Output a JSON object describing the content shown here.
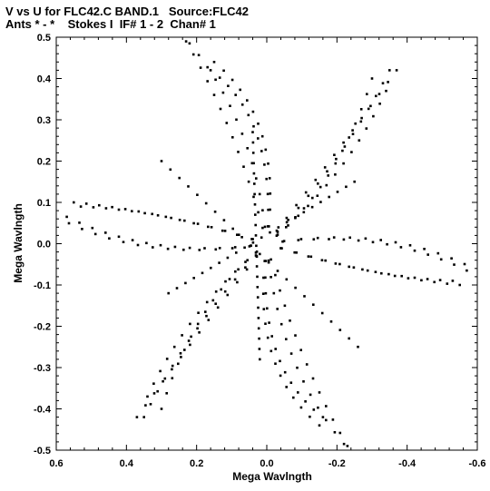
{
  "chart_data": {
    "type": "scatter",
    "title": "V vs U for FLC42.C BAND.1   Source:FLC42",
    "subtitle": "Ants * - *    Stokes I  IF# 1 - 2  Chan# 1",
    "xlabel": "Mega Wavlngth",
    "ylabel": "Mega Wavlngth",
    "xlim": [
      0.6,
      -0.6
    ],
    "ylim": [
      -0.5,
      0.5
    ],
    "x_ticks": [
      "0.6",
      "0.4",
      "0.2",
      "0.0",
      "-0.2",
      "-0.4",
      "-0.6"
    ],
    "y_ticks": [
      "0.5",
      "0.4",
      "0.3",
      "0.2",
      "0.1",
      "0.0",
      "-0.1",
      "-0.2",
      "-0.3",
      "-0.4",
      "-0.5"
    ],
    "grid": false,
    "arms": [
      {
        "end": [
          0.22,
          0.485
        ],
        "mid": [
          0.03,
          0.29
        ]
      },
      {
        "end": [
          0.15,
          0.44
        ],
        "mid": [
          -0.05,
          0.3
        ]
      },
      {
        "end": [
          -0.37,
          0.42
        ],
        "mid": [
          -0.2,
          0.22
        ]
      },
      {
        "end": [
          -0.34,
          0.37
        ],
        "mid": [
          -0.22,
          0.15
        ]
      },
      {
        "end": [
          -0.6,
          -0.065
        ],
        "mid": [
          -0.35,
          0.05
        ]
      },
      {
        "end": [
          -0.55,
          -0.1
        ],
        "mid": [
          -0.3,
          -0.08
        ]
      },
      {
        "end": [
          -0.23,
          -0.49
        ],
        "mid": [
          -0.08,
          -0.27
        ]
      },
      {
        "end": [
          -0.16,
          -0.42
        ],
        "mid": [
          0.03,
          -0.3
        ]
      },
      {
        "end": [
          0.35,
          -0.42
        ],
        "mid": [
          0.22,
          -0.2
        ]
      },
      {
        "end": [
          0.3,
          -0.4
        ],
        "mid": [
          0.2,
          -0.13
        ]
      },
      {
        "end": [
          0.57,
          0.065
        ],
        "mid": [
          0.32,
          -0.04
        ]
      },
      {
        "end": [
          0.53,
          0.09
        ],
        "mid": [
          0.28,
          0.08
        ]
      }
    ],
    "streaks": [
      {
        "from": [
          0.3,
          0.2
        ],
        "to": [
          -0.26,
          -0.25
        ]
      },
      {
        "from": [
          0.04,
          0.27
        ],
        "to": [
          0.02,
          -0.28
        ]
      },
      {
        "from": [
          -0.25,
          0.15
        ],
        "to": [
          0.28,
          -0.12
        ]
      }
    ]
  }
}
